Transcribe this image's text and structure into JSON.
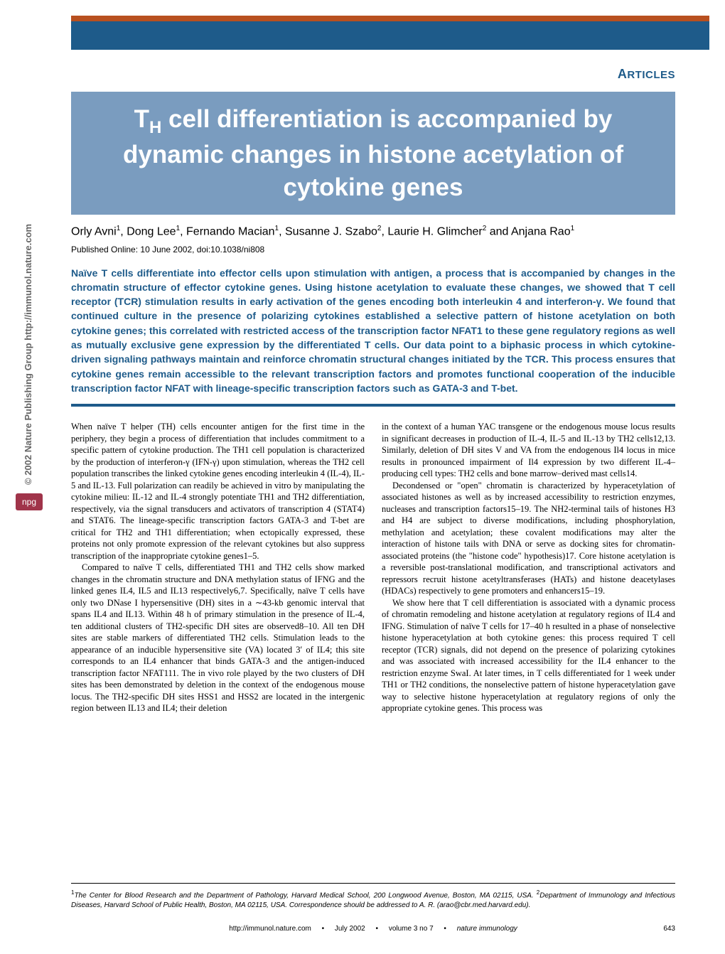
{
  "header": {
    "section_label": "RTICLES",
    "section_first_letter": "A"
  },
  "title": {
    "prefix": "T",
    "subscript": "H",
    "rest": " cell differentiation is accompanied by dynamic changes in histone acetylation of cytokine genes"
  },
  "authors_html": "Orly Avni<sup>1</sup>, Dong Lee<sup>1</sup>, Fernando Macian<sup>1</sup>, Susanne J. Szabo<sup>2</sup>, Laurie H. Glimcher<sup>2</sup> and Anjana Rao<sup>1</sup>",
  "published": "Published Online: 10 June 2002, doi:10.1038/ni808",
  "abstract": "Naïve T cells differentiate into effector cells upon stimulation with antigen, a process that is accompanied by changes in the chromatin structure of effector cytokine genes. Using histone acetylation to evaluate these changes, we showed that T cell receptor (TCR) stimulation results in early activation of the genes encoding both interleukin 4 and interferon-γ. We found that continued culture in the presence of polarizing cytokines established a selective pattern of histone acetylation on both cytokine genes; this correlated with restricted access of the transcription factor NFAT1 to these gene regulatory regions as well as mutually exclusive gene expression by the differentiated T cells. Our data point to a biphasic process in which cytokine-driven signaling pathways maintain and reinforce chromatin structural changes initiated by the TCR. This process ensures that cytokine genes remain accessible to the relevant transcription factors and promotes functional cooperation of the inducible transcription factor NFAT with lineage-specific transcription factors such as GATA-3 and T-bet.",
  "body": {
    "p1": "When naïve T helper (TH) cells encounter antigen for the first time in the periphery, they begin a process of differentiation that includes commitment to a specific pattern of cytokine production. The TH1 cell population is characterized by the production of interferon-γ (IFN-γ) upon stimulation, whereas the TH2 cell population transcribes the linked cytokine genes encoding interleukin 4 (IL-4), IL-5 and IL-13. Full polarization can readily be achieved in vitro by manipulating the cytokine milieu: IL-12 and IL-4 strongly potentiate TH1 and TH2 differentiation, respectively, via the signal transducers and activators of transcription 4 (STAT4) and STAT6. The lineage-specific transcription factors GATA-3 and T-bet are critical for TH2 and TH1 differentiation; when ectopically expressed, these proteins not only promote expression of the relevant cytokines but also suppress transcription of the inappropriate cytokine genes1–5.",
    "p2": "Compared to naïve T cells, differentiated TH1 and TH2 cells show marked changes in the chromatin structure and DNA methylation status of IFNG and the linked genes IL4, IL5 and IL13 respectively6,7. Specifically, naïve T cells have only two DNase I hypersensitive (DH) sites in a ∼43-kb genomic interval that spans IL4 and IL13. Within 48 h of primary stimulation in the presence of IL-4, ten additional clusters of TH2-specific DH sites are observed8–10. All ten DH sites are stable markers of differentiated TH2 cells. Stimulation leads to the appearance of an inducible hypersensitive site (VA) located 3′ of IL4; this site corresponds to an IL4 enhancer that binds GATA-3 and the antigen-induced transcription factor NFAT111. The in vivo role played by the two clusters of DH sites has been demonstrated by deletion in the context of the endogenous mouse locus. The TH2-specific DH sites HSS1 and HSS2 are located in the intergenic region between IL13 and IL4; their deletion",
    "p3": "in the context of a human YAC transgene or the endogenous mouse locus results in significant decreases in production of IL-4, IL-5 and IL-13 by TH2 cells12,13. Similarly, deletion of DH sites V and VA from the endogenous Il4 locus in mice results in pronounced impairment of Il4 expression by two different IL-4–producing cell types: TH2 cells and bone marrow–derived mast cells14.",
    "p4": "Decondensed or \"open\" chromatin is characterized by hyperacetylation of associated histones as well as by increased accessibility to restriction enzymes, nucleases and transcription factors15–19. The NH2-terminal tails of histones H3 and H4 are subject to diverse modifications, including phosphorylation, methylation and acetylation; these covalent modifications may alter the interaction of histone tails with DNA or serve as docking sites for chromatin-associated proteins (the \"histone code\" hypothesis)17. Core histone acetylation is a reversible post-translational modification, and transcriptional activators and repressors recruit histone acetyltransferases (HATs) and histone deacetylases (HDACs) respectively to gene promoters and enhancers15–19.",
    "p5": "We show here that T cell differentiation is associated with a dynamic process of chromatin remodeling and histone acetylation at regulatory regions of IL4 and IFNG. Stimulation of naïve T cells for 17–40 h resulted in a phase of nonselective histone hyperacetylation at both cytokine genes: this process required T cell receptor (TCR) signals, did not depend on the presence of polarizing cytokines and was associated with increased accessibility for the IL4 enhancer to the restriction enzyme SwaI. At later times, in T cells differentiated for 1 week under TH1 or TH2 conditions, the nonselective pattern of histone hyperacetylation gave way to selective histone hyperacetylation at regulatory regions of only the appropriate cytokine genes. This process was"
  },
  "sidebar": {
    "copyright": "© 2002 Nature Publishing Group  http://immunol.nature.com",
    "badge": "npg"
  },
  "affiliations": "1The Center for Blood Research and the Department of Pathology, Harvard Medical School, 200 Longwood Avenue, Boston, MA 02115, USA. 2Department of Immunology and Infectious Diseases, Harvard School of Public Health, Boston, MA 02115, USA. Correspondence should be addressed to A. R. (arao@cbr.med.harvard.edu).",
  "footer": {
    "url": "http://immunol.nature.com",
    "date": "July 2002",
    "volume": "volume 3 no 7",
    "journal": "nature immunology",
    "page": "643"
  },
  "colors": {
    "header_blue": "#1e5b8a",
    "header_orange": "#b8501f",
    "title_bg": "#7a9cbf",
    "badge": "#a0344a"
  }
}
